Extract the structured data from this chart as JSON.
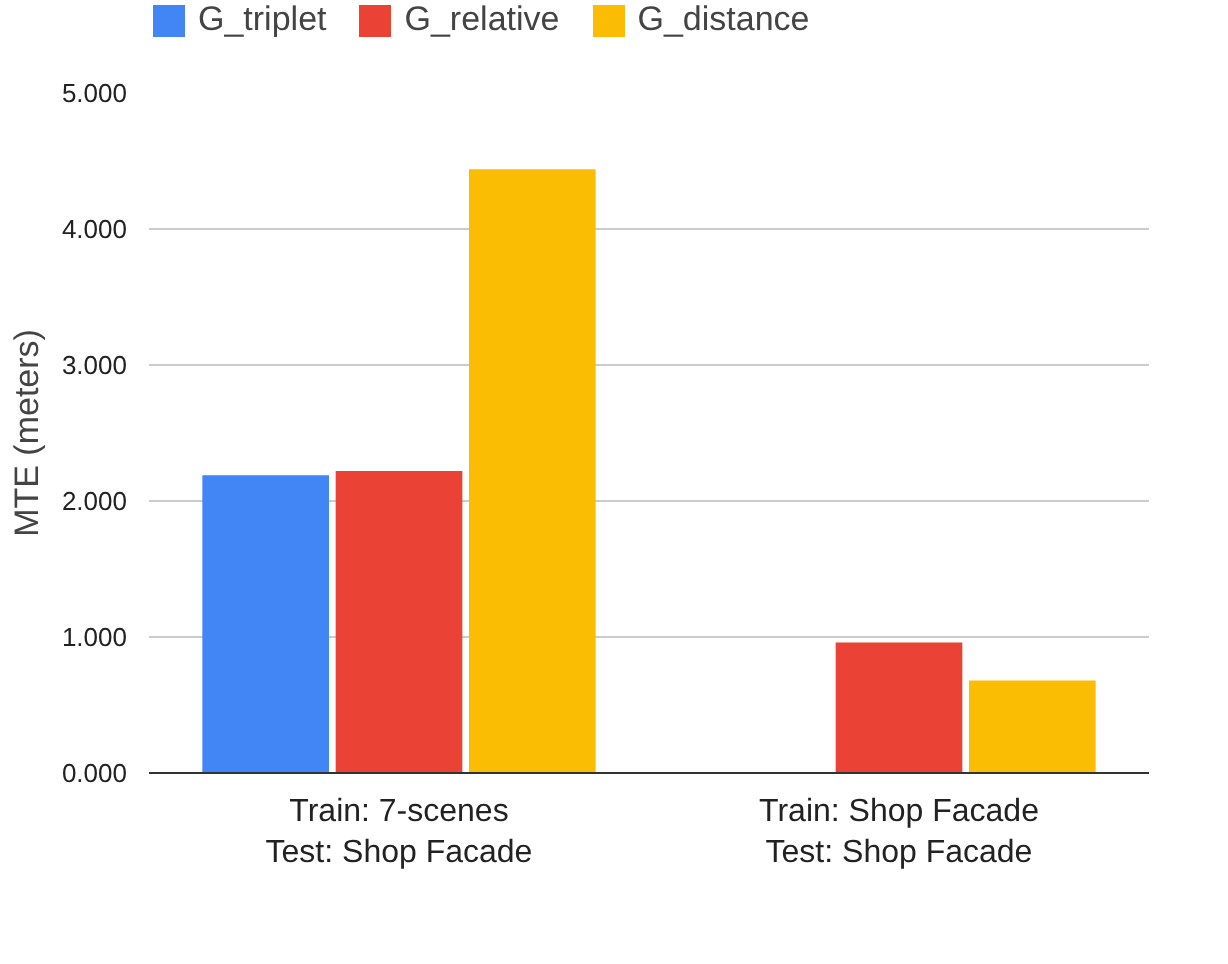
{
  "chart_data": {
    "type": "bar",
    "ylabel": "MTE (meters)",
    "categories": [
      "Train: 7-scenes\nTest: Shop Facade",
      "Train: Shop Facade\nTest: Shop Facade"
    ],
    "series": [
      {
        "name": "G_triplet",
        "color": "#4285f4",
        "values": [
          2.19,
          null
        ]
      },
      {
        "name": "G_relative",
        "color": "#ea4335",
        "values": [
          2.22,
          0.96
        ]
      },
      {
        "name": "G_distance",
        "color": "#fbbc04",
        "values": [
          4.44,
          0.68
        ]
      }
    ],
    "ylim": [
      0,
      5
    ],
    "yticks": [
      {
        "value": 0,
        "label": "0.000"
      },
      {
        "value": 1,
        "label": "1.000"
      },
      {
        "value": 2,
        "label": "2.000"
      },
      {
        "value": 3,
        "label": "3.000"
      },
      {
        "value": 4,
        "label": "4.000"
      },
      {
        "value": 5,
        "label": "5.000"
      }
    ],
    "grid": "y",
    "legend": "top"
  }
}
